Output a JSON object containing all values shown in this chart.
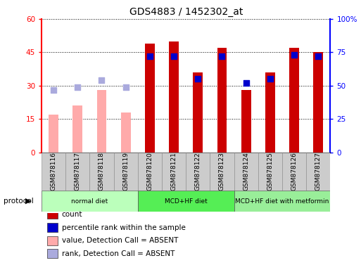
{
  "title": "GDS4883 / 1452302_at",
  "samples": [
    "GSM878116",
    "GSM878117",
    "GSM878118",
    "GSM878119",
    "GSM878120",
    "GSM878121",
    "GSM878122",
    "GSM878123",
    "GSM878124",
    "GSM878125",
    "GSM878126",
    "GSM878127"
  ],
  "count_values": [
    17,
    21,
    28,
    18,
    49,
    50,
    36,
    47,
    28,
    36,
    47,
    45
  ],
  "count_absent": [
    true,
    true,
    true,
    true,
    false,
    false,
    false,
    false,
    false,
    false,
    false,
    false
  ],
  "percentile_values": [
    47,
    49,
    54,
    49,
    72,
    72,
    55,
    72,
    52,
    55,
    73,
    72
  ],
  "percentile_absent": [
    true,
    true,
    true,
    true,
    false,
    false,
    false,
    false,
    false,
    false,
    false,
    false
  ],
  "bar_color_present": "#cc0000",
  "bar_color_absent": "#ffaaaa",
  "dot_color_present": "#0000cc",
  "dot_color_absent": "#aaaadd",
  "left_ylim": [
    0,
    60
  ],
  "right_ylim": [
    0,
    100
  ],
  "left_yticks": [
    0,
    15,
    30,
    45,
    60
  ],
  "right_yticks": [
    0,
    25,
    50,
    75,
    100
  ],
  "right_yticklabels": [
    "0",
    "25",
    "50",
    "75",
    "100%"
  ],
  "protocols": [
    {
      "label": "normal diet",
      "start": 0,
      "end": 3,
      "color": "#bbffbb"
    },
    {
      "label": "MCD+HF diet",
      "start": 4,
      "end": 7,
      "color": "#55ee55"
    },
    {
      "label": "MCD+HF diet with metformin",
      "start": 8,
      "end": 11,
      "color": "#99ee99"
    }
  ],
  "legend_items": [
    {
      "label": "count",
      "color": "#cc0000"
    },
    {
      "label": "percentile rank within the sample",
      "color": "#0000cc"
    },
    {
      "label": "value, Detection Call = ABSENT",
      "color": "#ffaaaa"
    },
    {
      "label": "rank, Detection Call = ABSENT",
      "color": "#aaaadd"
    }
  ],
  "bar_width": 0.4,
  "dot_size": 30,
  "protocol_label": "protocol",
  "background_color": "#ffffff",
  "plot_bg": "#ffffff"
}
